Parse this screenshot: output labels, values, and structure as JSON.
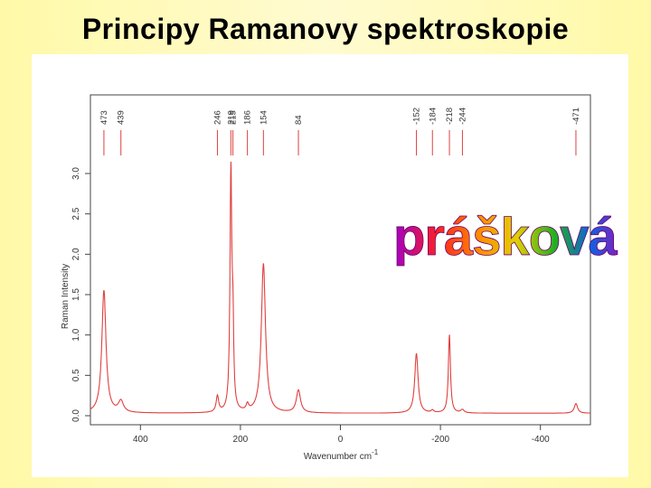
{
  "slide": {
    "title": "Principy Ramanovy spektroskopie"
  },
  "overlay": {
    "text": "prášková"
  },
  "colors": {
    "spectrum": "#e04040",
    "axis": "#444444",
    "background": "#fff9a8"
  },
  "chart_data": {
    "type": "line",
    "title": "",
    "xlabel": "Wavenumber cm",
    "xlabel_superscript": "-1",
    "ylabel": "Raman Intensity",
    "xlim": [
      500,
      -500
    ],
    "ylim": [
      0,
      3.0
    ],
    "x_ticks": [
      400,
      200,
      0,
      -200,
      -400
    ],
    "y_ticks": [
      0.0,
      0.5,
      1.0,
      1.5,
      2.0,
      2.5,
      3.0
    ],
    "y_tick_labels": [
      "0.0",
      "0.5",
      "1.0",
      "1.5",
      "2.0",
      "2.5",
      "3.0"
    ],
    "baseline": 0.03,
    "peaks": [
      {
        "x": 473,
        "height": 1.52,
        "width": 5
      },
      {
        "x": 439,
        "height": 0.14,
        "width": 6
      },
      {
        "x": 246,
        "height": 0.2,
        "width": 3
      },
      {
        "x": 219,
        "height": 2.95,
        "width": 2.2
      },
      {
        "x": 215,
        "height": 0.9,
        "width": 1.8
      },
      {
        "x": 186,
        "height": 0.08,
        "width": 3
      },
      {
        "x": 154,
        "height": 1.85,
        "width": 5
      },
      {
        "x": 84,
        "height": 0.28,
        "width": 5
      },
      {
        "x": -152,
        "height": 0.74,
        "width": 4
      },
      {
        "x": -184,
        "height": 0.03,
        "width": 3
      },
      {
        "x": -218,
        "height": 0.97,
        "width": 2.5
      },
      {
        "x": -244,
        "height": 0.04,
        "width": 4
      },
      {
        "x": -471,
        "height": 0.12,
        "width": 4
      }
    ],
    "peak_markers": [
      {
        "x": 473,
        "label": "473"
      },
      {
        "x": 439,
        "label": "439"
      },
      {
        "x": 246,
        "label": "246"
      },
      {
        "x": 219,
        "label": "219"
      },
      {
        "x": 215,
        "label": "215"
      },
      {
        "x": 186,
        "label": "186"
      },
      {
        "x": 154,
        "label": "154"
      },
      {
        "x": 84,
        "label": "84"
      },
      {
        "x": -152,
        "label": "-152"
      },
      {
        "x": -184,
        "label": "-184"
      },
      {
        "x": -218,
        "label": "-218"
      },
      {
        "x": -244,
        "label": "-244"
      },
      {
        "x": -471,
        "label": "-471"
      }
    ]
  }
}
